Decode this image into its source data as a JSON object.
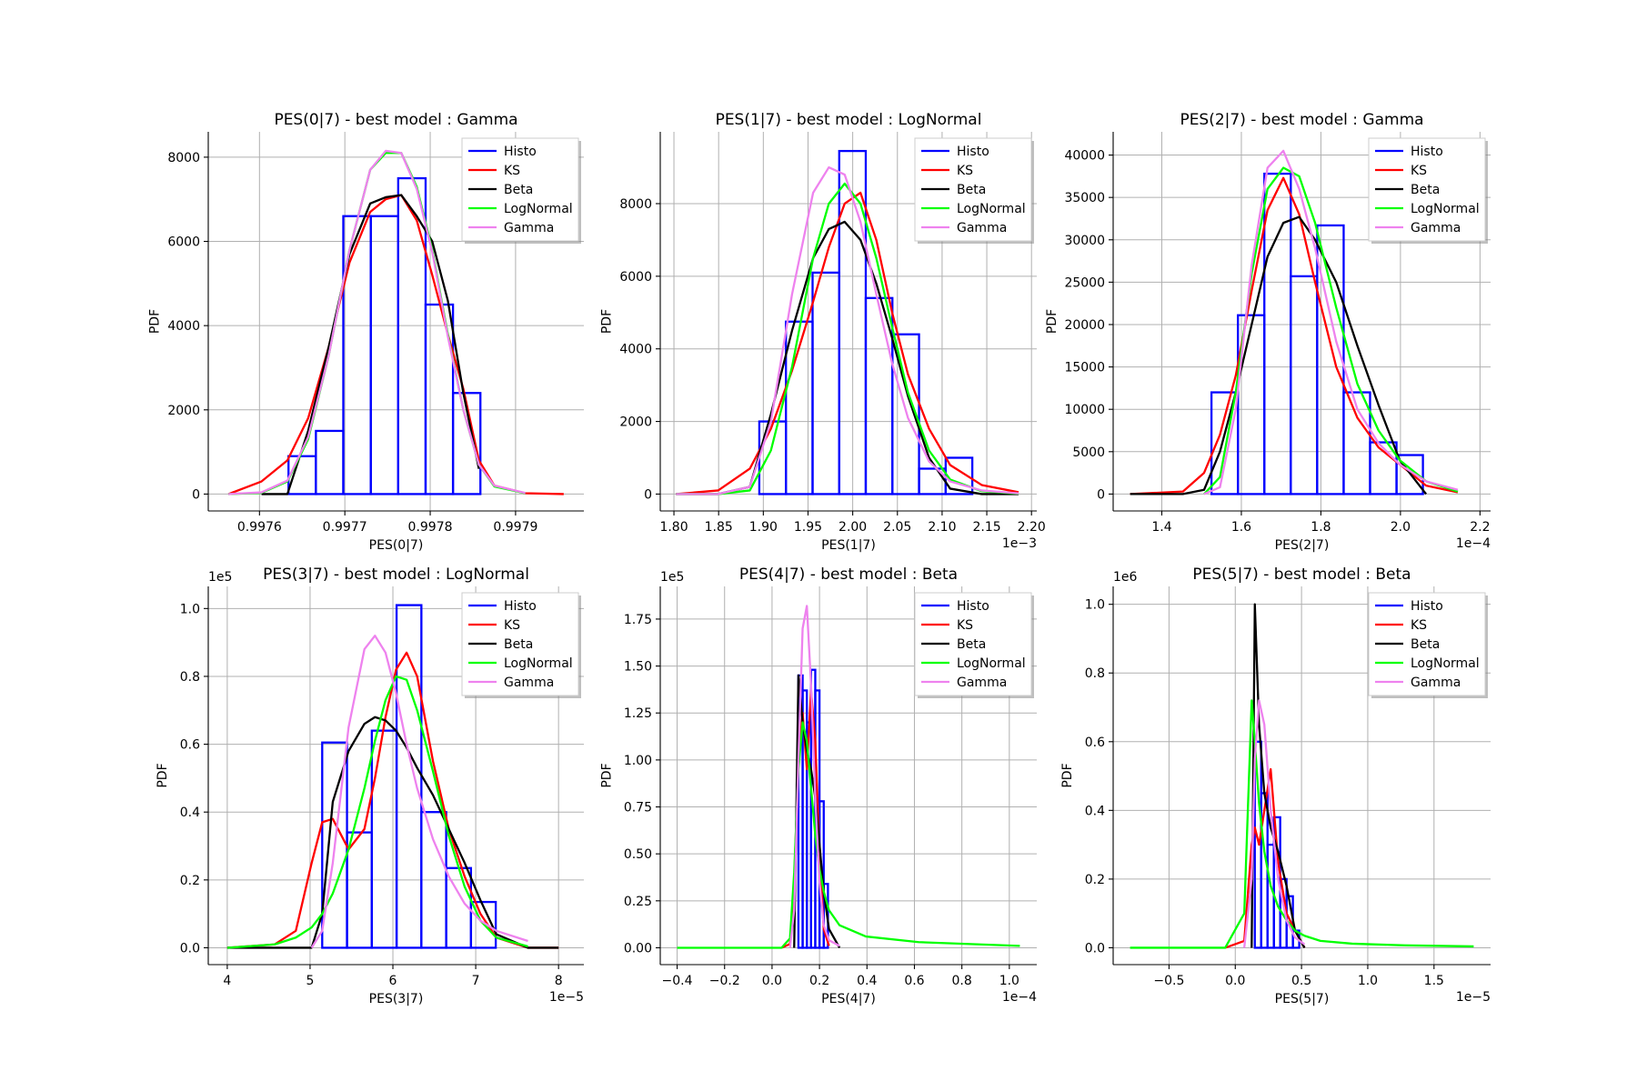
{
  "chart_data": [
    {
      "type": "histogram",
      "title": "PES(0|7) - best model : Gamma",
      "xlabel": "PES(0|7)",
      "ylabel": "PDF",
      "xlim": [
        0.99754,
        0.99798
      ],
      "ylim": [
        -401,
        8602
      ],
      "xticks": [
        0.9976,
        0.9977,
        0.9978,
        0.9979
      ],
      "yticks": [
        0,
        2000,
        4000,
        6000,
        8000
      ],
      "grid": true,
      "legend": "upper right",
      "x": [
        0.9975636,
        0.9976024,
        0.9976327,
        0.997657,
        0.9976812,
        0.9977055,
        0.9977297,
        0.9977479,
        0.9977661,
        0.9977842,
        0.9978024,
        0.9978206,
        0.9978388,
        0.997857,
        0.9978752,
        0.9979115,
        0.9979564
      ],
      "series": [
        {
          "name": "Histo",
          "color": "#0000ff",
          "bins": [
            0.997634,
            0.9976661,
            0.9976982,
            0.9977304,
            0.9977625,
            0.9977946,
            0.9978267,
            0.9978588
          ],
          "values": [
            900,
            1500,
            6600,
            6600,
            7500,
            4500,
            2400
          ]
        },
        {
          "name": "KS",
          "color": "#ff0000",
          "values": [
            0,
            300,
            800,
            1800,
            3500,
            5500,
            6700,
            7000,
            7100,
            6500,
            5200,
            3800,
            2500,
            800,
            200,
            20,
            0
          ]
        },
        {
          "name": "Beta",
          "color": "#000000",
          "values": [
            null,
            0,
            0,
            1500,
            3500,
            5700,
            6900,
            7050,
            7100,
            6600,
            6000,
            4600,
            2400,
            600,
            null,
            null,
            null
          ]
        },
        {
          "name": "LogNormal",
          "color": "#00ff00",
          "values": [
            0,
            30,
            300,
            1300,
            3300,
            5800,
            7700,
            8100,
            8100,
            7300,
            5800,
            3800,
            2000,
            700,
            180,
            20,
            null
          ]
        },
        {
          "name": "Gamma",
          "color": "#ee82ee",
          "values": [
            0,
            40,
            320,
            1350,
            3300,
            5800,
            7700,
            8150,
            8100,
            7250,
            5750,
            3750,
            2000,
            700,
            200,
            25,
            null
          ]
        }
      ]
    },
    {
      "type": "histogram",
      "title": "PES(1|7) - best model : LogNormal",
      "xlabel": "PES(1|7)",
      "ylabel": "PDF",
      "x_offset": "1e−3",
      "xlim": [
        1.7847,
        2.2059
      ],
      "ylim": [
        -465,
        9978
      ],
      "xticks": [
        {
          "value": 1.8,
          "label": "1.80"
        },
        1.85,
        {
          "value": 1.9,
          "label": "1.90"
        },
        1.95,
        {
          "value": 2,
          "label": "2.00"
        },
        2.05,
        {
          "value": 2.1,
          "label": "2.10"
        },
        2.15,
        {
          "value": 2.2,
          "label": "2.20"
        }
      ],
      "yticks": [
        0,
        2000,
        4000,
        6000,
        8000
      ],
      "grid": true,
      "legend": "upper right",
      "x": [
        1.8024,
        1.8495,
        1.8849,
        1.9085,
        1.9321,
        1.9557,
        1.9733,
        1.991,
        2.0087,
        2.0264,
        2.0441,
        2.0618,
        2.0854,
        2.109,
        2.1443,
        2.1856
      ],
      "series": [
        {
          "name": "Histo",
          "color": "#0000ff",
          "bins": [
            1.8955,
            1.9253,
            1.9551,
            1.9849,
            2.0146,
            2.0444,
            2.0742,
            2.104,
            2.1338
          ],
          "values": [
            2000,
            4750,
            6100,
            9450,
            5400,
            4400,
            700,
            1000
          ]
        },
        {
          "name": "KS",
          "color": "#ff0000",
          "values": [
            0,
            100,
            700,
            1800,
            3400,
            5300,
            6800,
            8000,
            8300,
            7000,
            5000,
            3300,
            1800,
            800,
            250,
            50
          ]
        },
        {
          "name": "Beta",
          "color": "#000000",
          "values": [
            0,
            0,
            200,
            2200,
            4500,
            6500,
            7300,
            7500,
            7000,
            5800,
            4300,
            2700,
            1000,
            150,
            0,
            0
          ]
        },
        {
          "name": "LogNormal",
          "color": "#00ff00",
          "values": [
            0,
            0,
            100,
            1200,
            3500,
            6500,
            8000,
            8550,
            8000,
            6500,
            4600,
            2800,
            1200,
            400,
            80,
            10
          ]
        },
        {
          "name": "Gamma",
          "color": "#ee82ee",
          "values": [
            0,
            0,
            200,
            2000,
            5500,
            8300,
            9000,
            8800,
            7500,
            5500,
            3600,
            2100,
            900,
            350,
            100,
            20
          ]
        }
      ]
    },
    {
      "type": "histogram",
      "title": "PES(2|7) - best model : Gamma",
      "xlabel": "PES(2|7)",
      "ylabel": "PDF",
      "x_offset": "1e−4",
      "xlim": [
        1.2777,
        2.2266
      ],
      "ylim": [
        -1994,
        42741
      ],
      "xticks": [
        1.4,
        1.6,
        1.8,
        {
          "value": 2,
          "label": "2.0"
        },
        2.2
      ],
      "yticks": [
        0,
        5000,
        10000,
        15000,
        20000,
        25000,
        30000,
        35000,
        40000
      ],
      "grid": true,
      "legend": "upper right",
      "x": [
        1.3203,
        1.4532,
        1.5063,
        1.5462,
        1.586,
        1.6259,
        1.6658,
        1.7056,
        1.7455,
        1.7854,
        1.8385,
        1.8917,
        1.9449,
        1.998,
        2.0645,
        2.1442
      ],
      "series": [
        {
          "name": "Histo",
          "color": "#0000ff",
          "bins": [
            1.5249,
            1.5914,
            1.6578,
            1.7243,
            1.7907,
            1.8572,
            1.9236,
            1.9901,
            2.0565
          ],
          "values": [
            12000,
            21100,
            37800,
            25700,
            31700,
            12000,
            6100,
            4600
          ]
        },
        {
          "name": "KS",
          "color": "#ff0000",
          "values": [
            0,
            300,
            2500,
            7000,
            14000,
            24000,
            33500,
            37300,
            33000,
            25000,
            15000,
            9000,
            5500,
            3500,
            1000,
            200
          ]
        },
        {
          "name": "Beta",
          "color": "#000000",
          "values": [
            0,
            0,
            500,
            5000,
            12000,
            20000,
            28000,
            32000,
            32700,
            30000,
            25000,
            17500,
            10500,
            4000,
            0,
            null
          ]
        },
        {
          "name": "LogNormal",
          "color": "#00ff00",
          "values": [
            null,
            null,
            0,
            2000,
            12000,
            26000,
            36000,
            38500,
            37500,
            32000,
            22000,
            13000,
            7500,
            4000,
            1500,
            300
          ]
        },
        {
          "name": "Gamma",
          "color": "#ee82ee",
          "values": [
            null,
            null,
            0,
            800,
            10000,
            27000,
            38500,
            40500,
            36000,
            29000,
            18000,
            10000,
            6000,
            3500,
            1500,
            500
          ]
        }
      ]
    },
    {
      "type": "histogram",
      "title": "PES(3|7) - best model : LogNormal",
      "xlabel": "PES(3|7)",
      "ylabel": "PDF",
      "x_offset": "1e−5",
      "y_offset": "1e5",
      "xlim": [
        3.7707,
        8.3057
      ],
      "ylim": [
        -0.0497,
        1.0652
      ],
      "xticks": [
        4,
        5,
        6,
        7,
        8
      ],
      "yticks": [
        {
          "value": 0,
          "label": "0.0"
        },
        0.2,
        0.4,
        0.6,
        0.8,
        {
          "value": 1,
          "label": "1.0"
        }
      ],
      "grid": true,
      "legend": "upper right",
      "x": [
        4,
        4.5732,
        4.828,
        5.0191,
        5.1465,
        5.2739,
        5.465,
        5.6561,
        5.7834,
        5.9108,
        6.0382,
        6.1656,
        6.293,
        6.4841,
        6.6752,
        6.8662,
        7.0573,
        7.2484,
        7.6306,
        8
      ],
      "series": [
        {
          "name": "Histo",
          "color": "#0000ff",
          "bins": [
            5.1465,
            5.4459,
            5.7452,
            6.0446,
            6.3439,
            6.6433,
            6.9427,
            7.242
          ],
          "values": [
            0.605,
            0.34,
            0.64,
            1.01,
            0.4,
            0.235,
            0.135
          ]
        },
        {
          "name": "KS",
          "color": "#ff0000",
          "values": [
            0,
            0.01,
            0.05,
            0.25,
            0.37,
            0.38,
            0.29,
            0.35,
            0.5,
            0.68,
            0.82,
            0.87,
            0.8,
            0.55,
            0.35,
            0.21,
            0.1,
            0.03,
            0,
            0
          ]
        },
        {
          "name": "Beta",
          "color": "#000000",
          "values": [
            0,
            0,
            0,
            0,
            0.1,
            0.43,
            0.58,
            0.66,
            0.68,
            0.67,
            0.64,
            0.59,
            0.53,
            0.45,
            0.35,
            0.25,
            0.14,
            0.04,
            0,
            0
          ]
        },
        {
          "name": "LogNormal",
          "color": "#00ff00",
          "values": [
            0,
            0.01,
            0.03,
            0.06,
            0.1,
            0.16,
            0.29,
            0.47,
            0.61,
            0.73,
            0.8,
            0.79,
            0.7,
            0.52,
            0.33,
            0.18,
            0.08,
            0.03,
            0.004,
            null
          ]
        },
        {
          "name": "Gamma",
          "color": "#ee82ee",
          "values": [
            null,
            null,
            null,
            0,
            0.05,
            0.25,
            0.65,
            0.88,
            0.92,
            0.87,
            0.75,
            0.6,
            0.47,
            0.32,
            0.21,
            0.13,
            0.08,
            0.05,
            0.02,
            null
          ]
        }
      ]
    },
    {
      "type": "histogram",
      "title": "PES(4|7) - best model : Beta",
      "xlabel": "PES(4|7)",
      "ylabel": "PDF",
      "x_offset": "1e−4",
      "y_offset": "1e5",
      "xlim": [
        -0.4711,
        1.1156
      ],
      "ylim": [
        -0.0897,
        1.9239
      ],
      "xticks": [
        {
          "value": -0.4,
          "label": "−0.4"
        },
        {
          "value": -0.2,
          "label": "−0.2"
        },
        {
          "value": 0,
          "label": "0.0"
        },
        0.2,
        0.4,
        0.6,
        0.8,
        {
          "value": 1,
          "label": "1.0"
        }
      ],
      "yticks": [
        {
          "value": 0,
          "label": "0.00"
        },
        0.25,
        {
          "value": 0.5,
          "label": "0.50"
        },
        0.75,
        {
          "value": 1,
          "label": "1.00"
        },
        1.25,
        {
          "value": 1.5,
          "label": "1.50"
        },
        1.75
      ],
      "grid": true,
      "legend": "upper right",
      "x": [
        -0.4,
        0.04,
        0.0756,
        0.0933,
        0.1111,
        0.1289,
        0.1467,
        0.1644,
        0.1822,
        0.2,
        0.2178,
        0.24,
        0.2844,
        0.3956,
        0.6178,
        1.0444
      ],
      "series": [
        {
          "name": "Histo",
          "color": "#0000ff",
          "bins": [
            0.1111,
            0.1289,
            0.1467,
            0.1644,
            0.1822,
            0.2,
            0.2178,
            0.2356
          ],
          "values": [
            1.45,
            1.37,
            1.2,
            1.48,
            1.37,
            0.78,
            0.34
          ]
        },
        {
          "name": "KS",
          "color": "#ff0000",
          "values": [
            null,
            0,
            0.02,
            0.35,
            1,
            1.25,
            0.95,
            1.37,
            1.1,
            0.5,
            0.1,
            0.01,
            null,
            null,
            null,
            null
          ]
        },
        {
          "name": "Beta",
          "color": "#000000",
          "values": [
            null,
            null,
            null,
            0,
            1.45,
            1.2,
            1.05,
            0.95,
            0.8,
            0.55,
            0.3,
            0.1,
            0,
            null,
            null,
            null
          ]
        },
        {
          "name": "LogNormal",
          "color": "#00ff00",
          "values": [
            0,
            0,
            0.05,
            0.4,
            0.95,
            1.2,
            1.1,
            0.85,
            0.6,
            0.42,
            0.3,
            0.2,
            0.12,
            0.06,
            0.03,
            0.01
          ]
        },
        {
          "name": "Gamma",
          "color": "#ee82ee",
          "values": [
            null,
            null,
            0,
            0.2,
            1,
            1.7,
            1.82,
            1.4,
            0.8,
            0.35,
            0.12,
            0.04,
            0.01,
            null,
            null,
            null
          ]
        }
      ]
    },
    {
      "type": "histogram",
      "title": "PES(5|7) - best model : Beta",
      "xlabel": "PES(5|7)",
      "ylabel": "PDF",
      "x_offset": "1e−5",
      "y_offset": "1e6",
      "xlim": [
        -0.9216,
        1.9269
      ],
      "ylim": [
        -0.0491,
        1.0521
      ],
      "xticks": [
        {
          "value": -0.5,
          "label": "−0.5"
        },
        {
          "value": 0,
          "label": "0.0"
        },
        0.5,
        {
          "value": 1,
          "label": "1.0"
        },
        1.5
      ],
      "yticks": [
        {
          "value": 0,
          "label": "0.0"
        },
        0.2,
        0.4,
        0.6,
        0.8,
        {
          "value": 1,
          "label": "1.0"
        }
      ],
      "grid": true,
      "legend": "upper right",
      "x": [
        -0.7939,
        -0.0758,
        0.0678,
        0.1237,
        0.1476,
        0.1795,
        0.2194,
        0.2673,
        0.3231,
        0.387,
        0.4508,
        0.5226,
        0.6423,
        0.8817,
        1.2806,
        1.7993
      ],
      "series": [
        {
          "name": "Histo",
          "color": "#0000ff",
          "bins": [
            0.1476,
            0.1955,
            0.2434,
            0.2912,
            0.3391,
            0.387,
            0.4349,
            0.4827
          ],
          "values": [
            0.6,
            0.45,
            0.3,
            0.38,
            0.2,
            0.15,
            0.05
          ]
        },
        {
          "name": "KS",
          "color": "#ff0000",
          "values": [
            null,
            0,
            0.02,
            0.3,
            0.35,
            0.3,
            0.4,
            0.52,
            0.25,
            0.1,
            0.05,
            0,
            null,
            null,
            null,
            null
          ]
        },
        {
          "name": "Beta",
          "color": "#000000",
          "values": [
            null,
            null,
            null,
            0,
            1,
            0.65,
            0.45,
            0.35,
            0.28,
            0.18,
            0.05,
            0,
            null,
            null,
            null,
            null
          ]
        },
        {
          "name": "LogNormal",
          "color": "#00ff00",
          "values": [
            0,
            0,
            0.1,
            0.72,
            0.6,
            0.42,
            0.28,
            0.18,
            0.12,
            0.08,
            0.05,
            0.035,
            0.02,
            0.012,
            0.007,
            0.004
          ]
        },
        {
          "name": "Gamma",
          "color": "#ee82ee",
          "values": [
            null,
            null,
            0,
            0.2,
            0.55,
            0.72,
            0.65,
            0.4,
            0.2,
            0.08,
            0.03,
            0.01,
            null,
            null,
            null,
            null
          ]
        }
      ]
    }
  ]
}
